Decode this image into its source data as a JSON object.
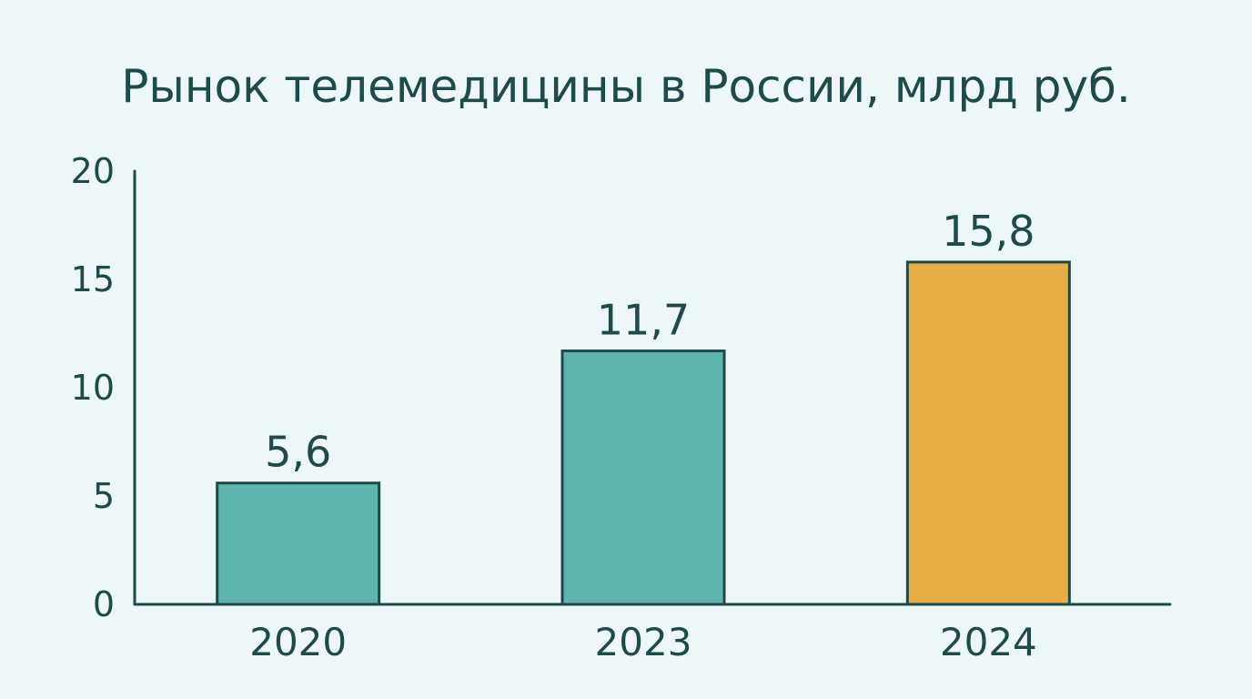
{
  "chart_data": {
    "type": "bar",
    "title": "Рынок телемедицины в России, млрд руб.",
    "xlabel": "",
    "ylabel": "",
    "categories": [
      "2020",
      "2023",
      "2024"
    ],
    "values": [
      5.6,
      11.7,
      15.8
    ],
    "data_labels": [
      "5,6",
      "11,7",
      "15,8"
    ],
    "ylim": [
      0,
      20
    ],
    "yticks": [
      0,
      5,
      10,
      15,
      20
    ],
    "grid": false,
    "bar_colors": [
      "#5fb5ad",
      "#5fb5ad",
      "#e9ad45"
    ]
  }
}
